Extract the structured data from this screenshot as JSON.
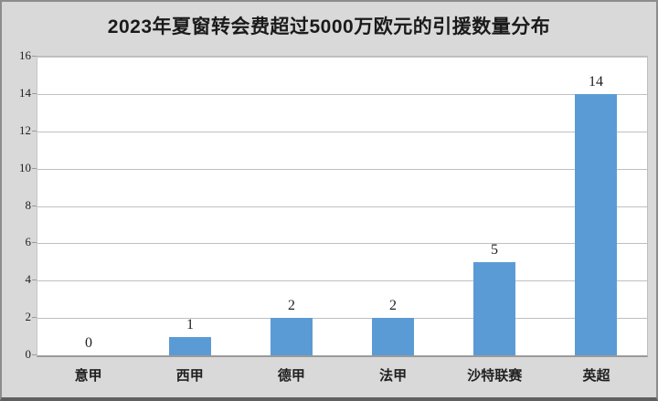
{
  "chart": {
    "title": "2023年夏窗转会费超过5000万欧元的引援数量分布"
  },
  "chart_data": {
    "type": "bar",
    "title": "2023年夏窗转会费超过5000万欧元的引援数量分布",
    "categories": [
      "意甲",
      "西甲",
      "德甲",
      "法甲",
      "沙特联赛",
      "英超"
    ],
    "values": [
      0,
      1,
      2,
      2,
      5,
      14
    ],
    "data_labels": [
      "0",
      "1",
      "2",
      "2",
      "5",
      "14"
    ],
    "xlabel": "",
    "ylabel": "",
    "ylim": [
      0,
      16
    ],
    "yticks": [
      0,
      2,
      4,
      6,
      8,
      10,
      12,
      14,
      16
    ],
    "grid": true,
    "legend_position": "none"
  },
  "colors": {
    "bar": "#5b9bd5",
    "background": "#d9d9d9",
    "plot_background": "#ffffff",
    "gridline": "#bfbfbf",
    "axis_line": "#9a9a9a",
    "text": "#1f1f1f",
    "frame_border": "#8c8c8c"
  }
}
